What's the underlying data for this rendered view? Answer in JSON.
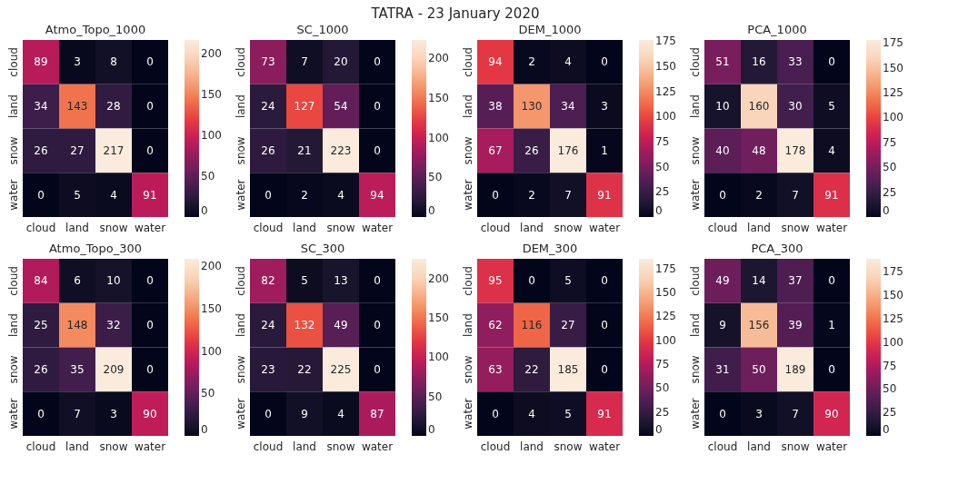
{
  "chart_data": [
    {
      "type": "heatmap",
      "title": "Atmo_Topo_1000",
      "annotations": [
        "TATRA - 23 January 2020"
      ],
      "categories": [
        "cloud",
        "land",
        "snow",
        "water"
      ],
      "y_categories": [
        "cloud",
        "land",
        "snow",
        "water"
      ],
      "cells": [
        [
          89,
          3,
          8,
          0
        ],
        [
          34,
          143,
          28,
          0
        ],
        [
          26,
          27,
          217,
          0
        ],
        [
          0,
          5,
          4,
          91
        ]
      ],
      "clim": [
        0,
        217
      ],
      "cticks": [
        0,
        50,
        100,
        150,
        200
      ],
      "data_labels": true
    },
    {
      "type": "heatmap",
      "title": "SC_1000",
      "categories": [
        "cloud",
        "land",
        "snow",
        "water"
      ],
      "y_categories": [
        "cloud",
        "land",
        "snow",
        "water"
      ],
      "cells": [
        [
          73,
          7,
          20,
          0
        ],
        [
          24,
          127,
          54,
          0
        ],
        [
          26,
          21,
          223,
          0
        ],
        [
          0,
          2,
          4,
          94
        ]
      ],
      "clim": [
        0,
        223
      ],
      "cticks": [
        0,
        50,
        100,
        150,
        200
      ],
      "data_labels": true
    },
    {
      "type": "heatmap",
      "title": "DEM_1000",
      "categories": [
        "cloud",
        "land",
        "snow",
        "water"
      ],
      "y_categories": [
        "cloud",
        "land",
        "snow",
        "water"
      ],
      "cells": [
        [
          94,
          2,
          4,
          0
        ],
        [
          38,
          130,
          34,
          3
        ],
        [
          67,
          26,
          176,
          1
        ],
        [
          0,
          2,
          7,
          91
        ]
      ],
      "clim": [
        0,
        176
      ],
      "cticks": [
        0,
        25,
        50,
        75,
        100,
        125,
        150,
        175
      ],
      "data_labels": true
    },
    {
      "type": "heatmap",
      "title": "PCA_1000",
      "categories": [
        "cloud",
        "land",
        "snow",
        "water"
      ],
      "y_categories": [
        "cloud",
        "land",
        "snow",
        "water"
      ],
      "cells": [
        [
          51,
          16,
          33,
          0
        ],
        [
          10,
          160,
          30,
          5
        ],
        [
          40,
          48,
          178,
          4
        ],
        [
          0,
          2,
          7,
          91
        ]
      ],
      "clim": [
        0,
        178
      ],
      "cticks": [
        0,
        25,
        50,
        75,
        100,
        125,
        150,
        175
      ],
      "data_labels": true
    },
    {
      "type": "heatmap",
      "title": "Atmo_Topo_300",
      "categories": [
        "cloud",
        "land",
        "snow",
        "water"
      ],
      "y_categories": [
        "cloud",
        "land",
        "snow",
        "water"
      ],
      "cells": [
        [
          84,
          6,
          10,
          0
        ],
        [
          25,
          148,
          32,
          0
        ],
        [
          26,
          35,
          209,
          0
        ],
        [
          0,
          7,
          3,
          90
        ]
      ],
      "clim": [
        0,
        209
      ],
      "cticks": [
        0,
        50,
        100,
        150,
        200
      ],
      "data_labels": true
    },
    {
      "type": "heatmap",
      "title": "SC_300",
      "categories": [
        "cloud",
        "land",
        "snow",
        "water"
      ],
      "y_categories": [
        "cloud",
        "land",
        "snow",
        "water"
      ],
      "cells": [
        [
          82,
          5,
          13,
          0
        ],
        [
          24,
          132,
          49,
          0
        ],
        [
          23,
          22,
          225,
          0
        ],
        [
          0,
          9,
          4,
          87
        ]
      ],
      "clim": [
        0,
        225
      ],
      "cticks": [
        0,
        50,
        100,
        150,
        200
      ],
      "data_labels": true
    },
    {
      "type": "heatmap",
      "title": "DEM_300",
      "categories": [
        "cloud",
        "land",
        "snow",
        "water"
      ],
      "y_categories": [
        "cloud",
        "land",
        "snow",
        "water"
      ],
      "cells": [
        [
          95,
          0,
          5,
          0
        ],
        [
          62,
          116,
          27,
          0
        ],
        [
          63,
          22,
          185,
          0
        ],
        [
          0,
          4,
          5,
          91
        ]
      ],
      "clim": [
        0,
        185
      ],
      "cticks": [
        0,
        25,
        50,
        75,
        100,
        125,
        150,
        175
      ],
      "data_labels": true
    },
    {
      "type": "heatmap",
      "title": "PCA_300",
      "categories": [
        "cloud",
        "land",
        "snow",
        "water"
      ],
      "y_categories": [
        "cloud",
        "land",
        "snow",
        "water"
      ],
      "cells": [
        [
          49,
          14,
          37,
          0
        ],
        [
          9,
          156,
          39,
          1
        ],
        [
          31,
          50,
          189,
          0
        ],
        [
          0,
          3,
          7,
          90
        ]
      ],
      "clim": [
        0,
        189
      ],
      "cticks": [
        0,
        25,
        50,
        75,
        100,
        125,
        150,
        175
      ],
      "data_labels": true
    }
  ]
}
